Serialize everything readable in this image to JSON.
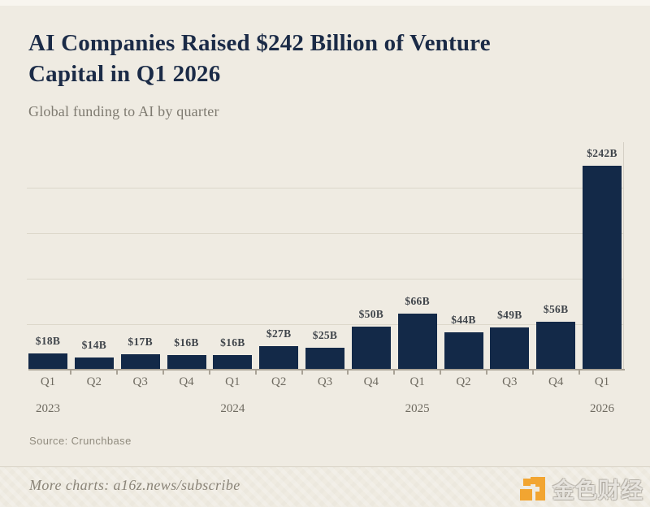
{
  "header": {
    "title_line1": "AI Companies Raised $242 Billion of Venture",
    "title_line2": "Capital in Q1 2026",
    "subtitle": "Global funding to AI by quarter"
  },
  "chart_data": {
    "type": "bar",
    "title": "AI Companies Raised $242 Billion of Venture Capital in Q1 2026",
    "subtitle": "Global funding to AI by quarter",
    "source": "Crunchbase",
    "unit": "USD billions",
    "categories": [
      "Q1 2023",
      "Q2 2023",
      "Q3 2023",
      "Q4 2023",
      "Q1 2024",
      "Q2 2024",
      "Q3 2024",
      "Q4 2024",
      "Q1 2025",
      "Q2 2025",
      "Q3 2025",
      "Q4 2025",
      "Q1 2026"
    ],
    "x_tick_labels": [
      "Q1",
      "Q2",
      "Q3",
      "Q4",
      "Q1",
      "Q2",
      "Q3",
      "Q4",
      "Q1",
      "Q2",
      "Q3",
      "Q4",
      "Q1"
    ],
    "year_labels": [
      {
        "year": "2023",
        "bar_index": 0
      },
      {
        "year": "2024",
        "bar_index": 4
      },
      {
        "year": "2025",
        "bar_index": 8
      },
      {
        "year": "2026",
        "bar_index": 12
      }
    ],
    "values": [
      18,
      14,
      17,
      16,
      16,
      27,
      25,
      50,
      66,
      44,
      49,
      56,
      242
    ],
    "bar_value_labels": [
      "$18B",
      "$14B",
      "$17B",
      "$16B",
      "$16B",
      "$27B",
      "$25B",
      "$50B",
      "$66B",
      "$44B",
      "$49B",
      "$56B",
      "$242B"
    ],
    "ylim": [
      0,
      250
    ],
    "grid": "4 unlabeled horizontal gridlines",
    "legend": "none",
    "bar_color": "#132948"
  },
  "source": {
    "label": "Source: Crunchbase"
  },
  "footer": {
    "more_charts_label": "More charts: a16z.news/subscribe",
    "watermark_text": "金色财经"
  },
  "colors": {
    "background": "#EFEBE2",
    "title": "#1B2B47",
    "subtitle": "#7E7A70",
    "bar": "#132948",
    "bar_value_label": "#40454B",
    "axis_text": "#6F6B61",
    "gridline": "#DCD7CA",
    "baseline": "#A9A296",
    "source_text": "#908B7E",
    "footer_text": "#8A8478",
    "watermark_orange": "#F2A531"
  }
}
